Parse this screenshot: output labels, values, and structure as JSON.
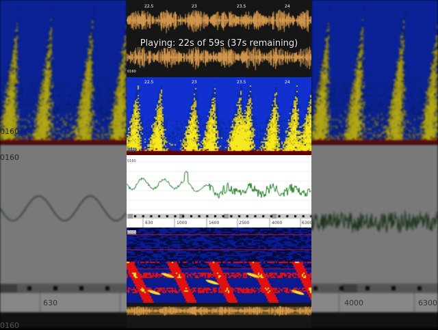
{
  "player": {
    "status": "Playing: 22s of 59s (37s remaining)"
  },
  "waveform": {
    "time_ticks": [
      "22.5",
      "23",
      "23.5",
      "24"
    ],
    "level_label": "0160",
    "color": "#e0a050"
  },
  "spectrogram_top": {
    "time_ticks": [
      "22.5",
      "23",
      "23.5",
      "24"
    ],
    "level_label": "0160",
    "colors": {
      "background": "#1030d0",
      "energy": "#f0e020"
    }
  },
  "spectrum": {
    "level_label": "0160",
    "line_color": "#208020",
    "freq_ticks": [
      "630",
      "1000",
      "1600",
      "2500",
      "4000",
      "6300"
    ]
  },
  "spectrogram_bottom": {
    "level_label": "5050",
    "colors": {
      "background": "#1020a0",
      "energy": "#e01010",
      "peak": "#ffe030"
    }
  },
  "background_blur": {
    "labels": [
      "0160",
      "0160",
      "630",
      "4000",
      "6300",
      "0160"
    ]
  }
}
